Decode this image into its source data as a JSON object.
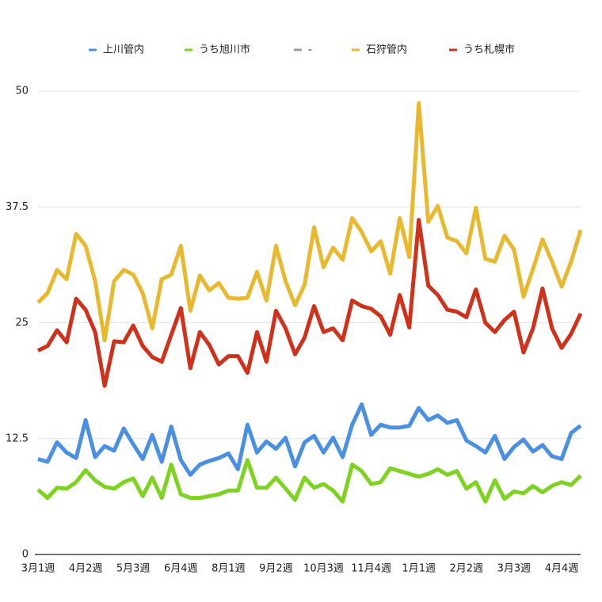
{
  "chart_data": {
    "type": "line",
    "categories": [
      "3月1週",
      null,
      null,
      null,
      null,
      "4月2週",
      null,
      null,
      null,
      null,
      "5月3週",
      null,
      null,
      null,
      null,
      "6月4週",
      null,
      null,
      null,
      null,
      "8月1週",
      null,
      null,
      null,
      null,
      "9月2週",
      null,
      null,
      null,
      null,
      "10月3週",
      null,
      null,
      null,
      null,
      "11月4週",
      null,
      null,
      null,
      null,
      "1月1週",
      null,
      null,
      null,
      null,
      "2月2週",
      null,
      null,
      null,
      null,
      "3月3週",
      null,
      null,
      null,
      null,
      "4月4週",
      null,
      null
    ],
    "series": [
      {
        "name": "上川管内",
        "color": "#4a90e2",
        "values": [
          10.3,
          10.0,
          12.1,
          11.0,
          10.4,
          14.5,
          10.5,
          11.7,
          11.2,
          13.6,
          11.9,
          10.3,
          12.9,
          10.0,
          13.8,
          10.2,
          8.6,
          9.7,
          10.1,
          10.4,
          10.9,
          9.2,
          14.0,
          11.0,
          12.2,
          11.4,
          12.6,
          9.5,
          12.1,
          12.8,
          11.0,
          12.6,
          10.5,
          14.0,
          16.2,
          12.9,
          14.0,
          13.7,
          13.7,
          13.9,
          15.8,
          14.5,
          15.0,
          14.2,
          14.5,
          12.3,
          11.7,
          11.0,
          12.8,
          10.3,
          11.6,
          12.4,
          11.1,
          11.8,
          10.6,
          10.3,
          13.1,
          13.9
        ]
      },
      {
        "name": "うち旭川市",
        "color": "#7ed321",
        "values": [
          7.0,
          6.1,
          7.2,
          7.1,
          7.8,
          9.1,
          8.0,
          7.3,
          7.1,
          7.8,
          8.2,
          6.3,
          8.3,
          6.1,
          9.7,
          6.5,
          6.1,
          6.1,
          6.3,
          6.5,
          6.9,
          6.9,
          10.2,
          7.2,
          7.2,
          8.3,
          7.1,
          5.9,
          8.3,
          7.2,
          7.6,
          6.9,
          5.7,
          9.7,
          9.0,
          7.6,
          7.8,
          9.3,
          9.0,
          8.7,
          8.4,
          8.7,
          9.2,
          8.6,
          9.0,
          7.1,
          7.8,
          5.7,
          8.0,
          6.0,
          6.8,
          6.6,
          7.4,
          6.7,
          7.4,
          7.8,
          7.5,
          8.5
        ]
      },
      {
        "name": "-",
        "color": "#9b9b9b",
        "values": [
          null,
          null,
          null,
          null,
          null,
          null,
          null,
          null,
          null,
          null,
          null,
          null,
          null,
          null,
          null,
          null,
          null,
          null,
          null,
          null,
          null,
          null,
          null,
          null,
          null,
          null,
          null,
          null,
          null,
          null,
          null,
          null,
          null,
          null,
          null,
          null,
          null,
          null,
          null,
          null,
          null,
          null,
          null,
          null,
          null,
          null,
          null,
          null,
          null,
          null,
          null,
          null,
          null,
          null,
          null,
          null,
          null,
          null
        ]
      },
      {
        "name": "石狩管内",
        "color": "#e8b92e",
        "values": [
          27.2,
          28.2,
          30.7,
          29.7,
          34.6,
          33.3,
          29.5,
          23.1,
          29.5,
          30.7,
          30.2,
          28.2,
          24.4,
          29.7,
          30.2,
          33.3,
          26.3,
          30.1,
          28.5,
          29.3,
          27.7,
          27.6,
          27.7,
          30.5,
          27.4,
          33.3,
          29.5,
          26.9,
          29.1,
          35.3,
          31.0,
          33.1,
          31.8,
          36.3,
          34.8,
          32.7,
          33.8,
          30.3,
          36.3,
          32.1,
          48.7,
          35.9,
          37.6,
          34.2,
          33.8,
          32.5,
          37.4,
          31.9,
          31.6,
          34.4,
          32.9,
          27.8,
          30.8,
          34.0,
          31.6,
          28.9,
          31.6,
          35.0
        ]
      },
      {
        "name": "うち札幌市",
        "color": "#d0311a",
        "values": [
          22.0,
          22.5,
          24.2,
          22.9,
          27.6,
          26.4,
          24.0,
          18.2,
          23.0,
          22.9,
          24.7,
          22.5,
          21.3,
          20.8,
          23.7,
          26.6,
          20.1,
          24.0,
          22.6,
          20.5,
          21.4,
          21.4,
          19.6,
          24.0,
          20.8,
          26.3,
          24.4,
          21.6,
          23.4,
          26.8,
          24.0,
          24.4,
          23.1,
          27.4,
          26.8,
          26.5,
          25.7,
          23.7,
          28.0,
          24.5,
          36.1,
          29.0,
          28.0,
          26.4,
          26.2,
          25.6,
          28.6,
          25.0,
          24.0,
          25.3,
          26.2,
          21.8,
          24.4,
          28.7,
          24.4,
          22.3,
          23.8,
          26.0
        ]
      }
    ],
    "ylim": [
      0,
      50
    ],
    "yticks": [
      0,
      12.5,
      25,
      37.5,
      50
    ],
    "grid": true
  }
}
